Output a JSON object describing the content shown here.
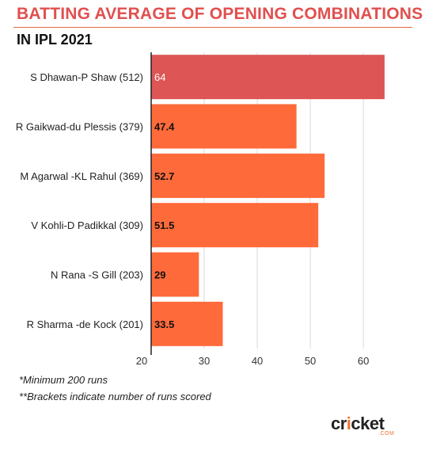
{
  "header": {
    "title": "BATTING AVERAGE OF OPENING COMBINATIONS",
    "subtitle": "IN IPL 2021"
  },
  "footnotes": {
    "line1": "*Minimum 200 runs",
    "line2": "**Brackets indicate number of runs scored"
  },
  "logo": {
    "word_start": "cr",
    "word_accent": "i",
    "word_end": "cket",
    "sub": ".COM"
  },
  "chart_data": {
    "type": "bar",
    "orientation": "horizontal",
    "categories": [
      "S Dhawan-P Shaw (512)",
      "R Gaikwad-du Plessis (379)",
      "M Agarwal -KL Rahul (369)",
      "V Kohli-D Padikkal (309)",
      "N Rana -S Gill (203)",
      "R Sharma -de Kock (201)"
    ],
    "values": [
      64,
      47.4,
      52.7,
      51.5,
      29,
      33.5
    ],
    "value_labels": [
      "64",
      "47.4",
      "52.7",
      "51.5",
      "29",
      "33.5"
    ],
    "x_ticks": [
      20,
      30,
      40,
      50,
      60
    ],
    "xlim": [
      20,
      66.4
    ],
    "grid": true,
    "colors": {
      "highlight": "#dd5555",
      "default": "#ff6a3a",
      "grid": "#d9d9d9",
      "axis": "#222222"
    },
    "highlight_index": 0
  }
}
